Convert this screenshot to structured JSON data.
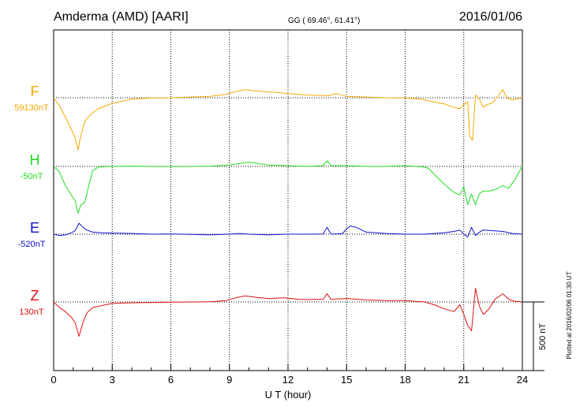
{
  "header": {
    "station": "Amderma (AMD)  [AARI]",
    "coords": "GG ( 69.46°,  61.41°)",
    "date": "2016/01/06"
  },
  "chart_data": {
    "type": "line",
    "xlabel": "U T (hour)",
    "xlim": [
      0,
      24
    ],
    "xticks": [
      0,
      3,
      6,
      9,
      12,
      15,
      18,
      21,
      24
    ],
    "y_unit": "nT",
    "scale_bar": {
      "label": "500 nT",
      "value": 500
    },
    "grid": true,
    "note": "Plotted at 2016/02/06 01:30 UT",
    "series": [
      {
        "name": "F",
        "baseline_label": "59130nT",
        "baseline": 59130,
        "color": "#f5a800",
        "x": [
          0,
          0.3,
          0.6,
          0.9,
          1.1,
          1.25,
          1.4,
          1.6,
          1.9,
          2.3,
          3,
          4,
          5,
          6,
          7,
          8,
          8.8,
          9.3,
          9.8,
          10.3,
          10.8,
          11.3,
          12,
          13,
          14,
          14.5,
          15,
          16,
          17,
          18,
          18.8,
          19.5,
          20,
          20.5,
          20.8,
          21,
          21.2,
          21.3,
          21.45,
          21.6,
          21.8,
          22,
          22.2,
          22.5,
          22.8,
          23,
          23.2,
          23.5,
          24
        ],
        "y": [
          59130,
          59070,
          58990,
          58900,
          58840,
          58750,
          58860,
          58960,
          59010,
          59050,
          59090,
          59120,
          59128,
          59130,
          59135,
          59140,
          59155,
          59175,
          59190,
          59180,
          59175,
          59170,
          59160,
          59150,
          59145,
          59160,
          59140,
          59135,
          59130,
          59128,
          59120,
          59100,
          59085,
          59060,
          59050,
          59080,
          59100,
          58850,
          58820,
          59150,
          59120,
          59060,
          59080,
          59095,
          59150,
          59190,
          59130,
          59115,
          59130
        ]
      },
      {
        "name": "H",
        "baseline_label": "-50nT",
        "baseline": -50,
        "color": "#22dd22",
        "x": [
          0,
          0.3,
          0.6,
          0.9,
          1.1,
          1.25,
          1.4,
          1.6,
          1.8,
          2,
          2.3,
          3,
          4,
          5,
          6,
          7,
          8,
          9,
          9.5,
          10,
          10.5,
          11,
          12,
          13,
          13.8,
          14,
          14.2,
          15,
          16,
          17,
          18,
          19,
          19.2,
          19.5,
          20,
          20.5,
          20.8,
          21,
          21.2,
          21.4,
          21.6,
          21.8,
          22,
          22.3,
          22.6,
          23,
          23.3,
          23.6,
          24
        ],
        "y": [
          -50,
          -90,
          -190,
          -260,
          -300,
          -390,
          -330,
          -310,
          -190,
          -80,
          -55,
          -50,
          -48,
          -50,
          -52,
          -50,
          -48,
          -40,
          -30,
          -20,
          -30,
          -40,
          -45,
          -50,
          -45,
          -10,
          -45,
          -45,
          -50,
          -50,
          -45,
          -55,
          -65,
          -110,
          -180,
          -240,
          -260,
          -200,
          -330,
          -250,
          -330,
          -250,
          -230,
          -230,
          -220,
          -190,
          -210,
          -150,
          -50
        ]
      },
      {
        "name": "E",
        "baseline_label": "-520nT",
        "baseline": -520,
        "color": "#1111cc",
        "x": [
          0,
          0.3,
          0.6,
          0.9,
          1.1,
          1.3,
          1.5,
          1.7,
          2,
          2.5,
          3,
          4,
          5,
          6,
          7,
          8,
          9,
          9.5,
          10,
          11,
          12,
          13,
          13.8,
          14,
          14.2,
          14.8,
          15,
          15.2,
          15.5,
          16,
          17,
          18,
          19,
          19.5,
          20,
          20.5,
          20.8,
          21,
          21.2,
          21.4,
          21.6,
          21.8,
          22,
          22.5,
          23,
          23.5,
          24
        ],
        "y": [
          -520,
          -530,
          -525,
          -510,
          -495,
          -440,
          -470,
          -490,
          -505,
          -510,
          -512,
          -515,
          -520,
          -518,
          -522,
          -525,
          -520,
          -515,
          -520,
          -525,
          -520,
          -520,
          -518,
          -470,
          -520,
          -515,
          -480,
          -460,
          -470,
          -505,
          -515,
          -520,
          -520,
          -515,
          -510,
          -500,
          -490,
          -520,
          -540,
          -470,
          -530,
          -505,
          -490,
          -495,
          -500,
          -515,
          -520
        ]
      },
      {
        "name": "Z",
        "baseline_label": "130nT",
        "baseline": 130,
        "color": "#dd1111",
        "x": [
          0,
          0.3,
          0.6,
          0.9,
          1.1,
          1.3,
          1.5,
          1.7,
          2,
          2.5,
          3,
          4,
          5,
          6,
          7,
          8,
          8.8,
          9.3,
          9.8,
          10.3,
          11,
          11.8,
          12.5,
          13,
          13.8,
          14,
          14.2,
          15,
          16,
          17,
          18,
          19,
          19.5,
          20,
          20.5,
          20.8,
          21,
          21.2,
          21.4,
          21.6,
          21.8,
          22,
          22.3,
          22.6,
          23,
          23.3,
          23.6,
          24
        ],
        "y": [
          130,
          90,
          60,
          20,
          -20,
          -120,
          -20,
          50,
          90,
          105,
          120,
          124,
          126,
          128,
          130,
          132,
          140,
          160,
          175,
          165,
          155,
          160,
          150,
          148,
          150,
          190,
          150,
          155,
          145,
          140,
          140,
          130,
          110,
          80,
          60,
          110,
          40,
          -40,
          -80,
          230,
          100,
          40,
          80,
          150,
          190,
          150,
          135,
          130
        ]
      }
    ]
  }
}
